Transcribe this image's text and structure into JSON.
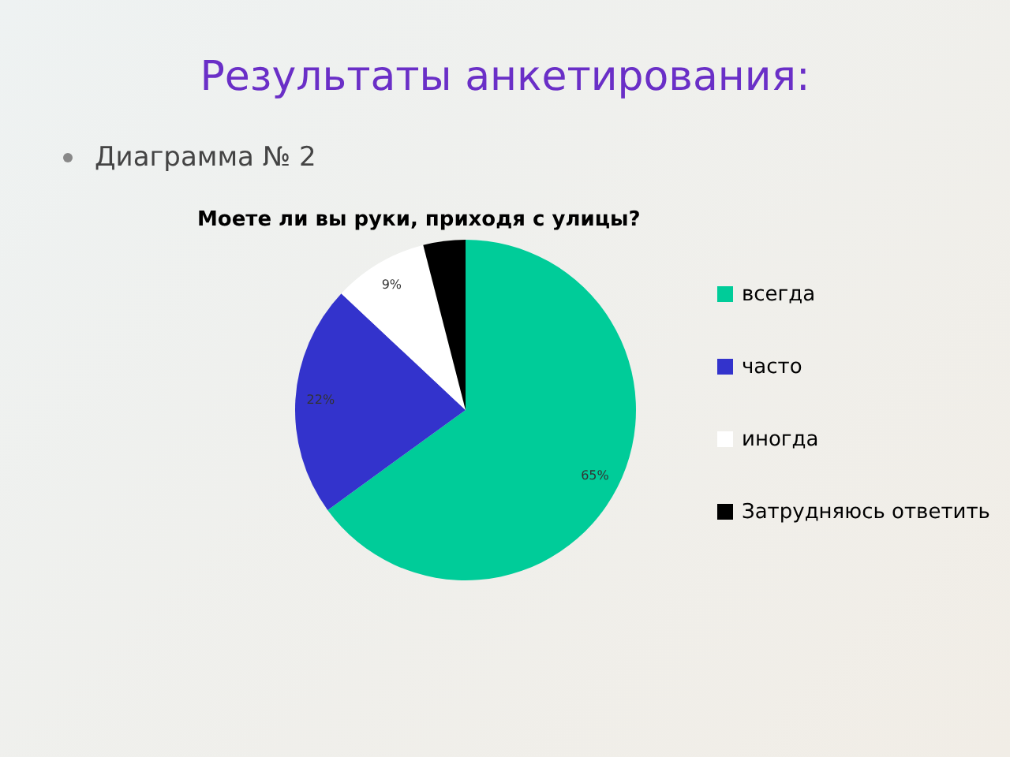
{
  "chart_data": {
    "type": "pie",
    "title": "Моете ли вы руки, приходя с улицы?",
    "annotations": [
      "Результаты анкетирования:",
      "Диаграмма № 2"
    ],
    "categories": [
      "всегда",
      "часто",
      "иногда",
      "Затрудняюсь ответить"
    ],
    "values": [
      65,
      22,
      9,
      4
    ],
    "value_labels": [
      "65%",
      "22%",
      "9%",
      null
    ],
    "colors": [
      "#00cc99",
      "#3333cc",
      "#ffffff",
      "#000000"
    ],
    "legend": "right"
  }
}
